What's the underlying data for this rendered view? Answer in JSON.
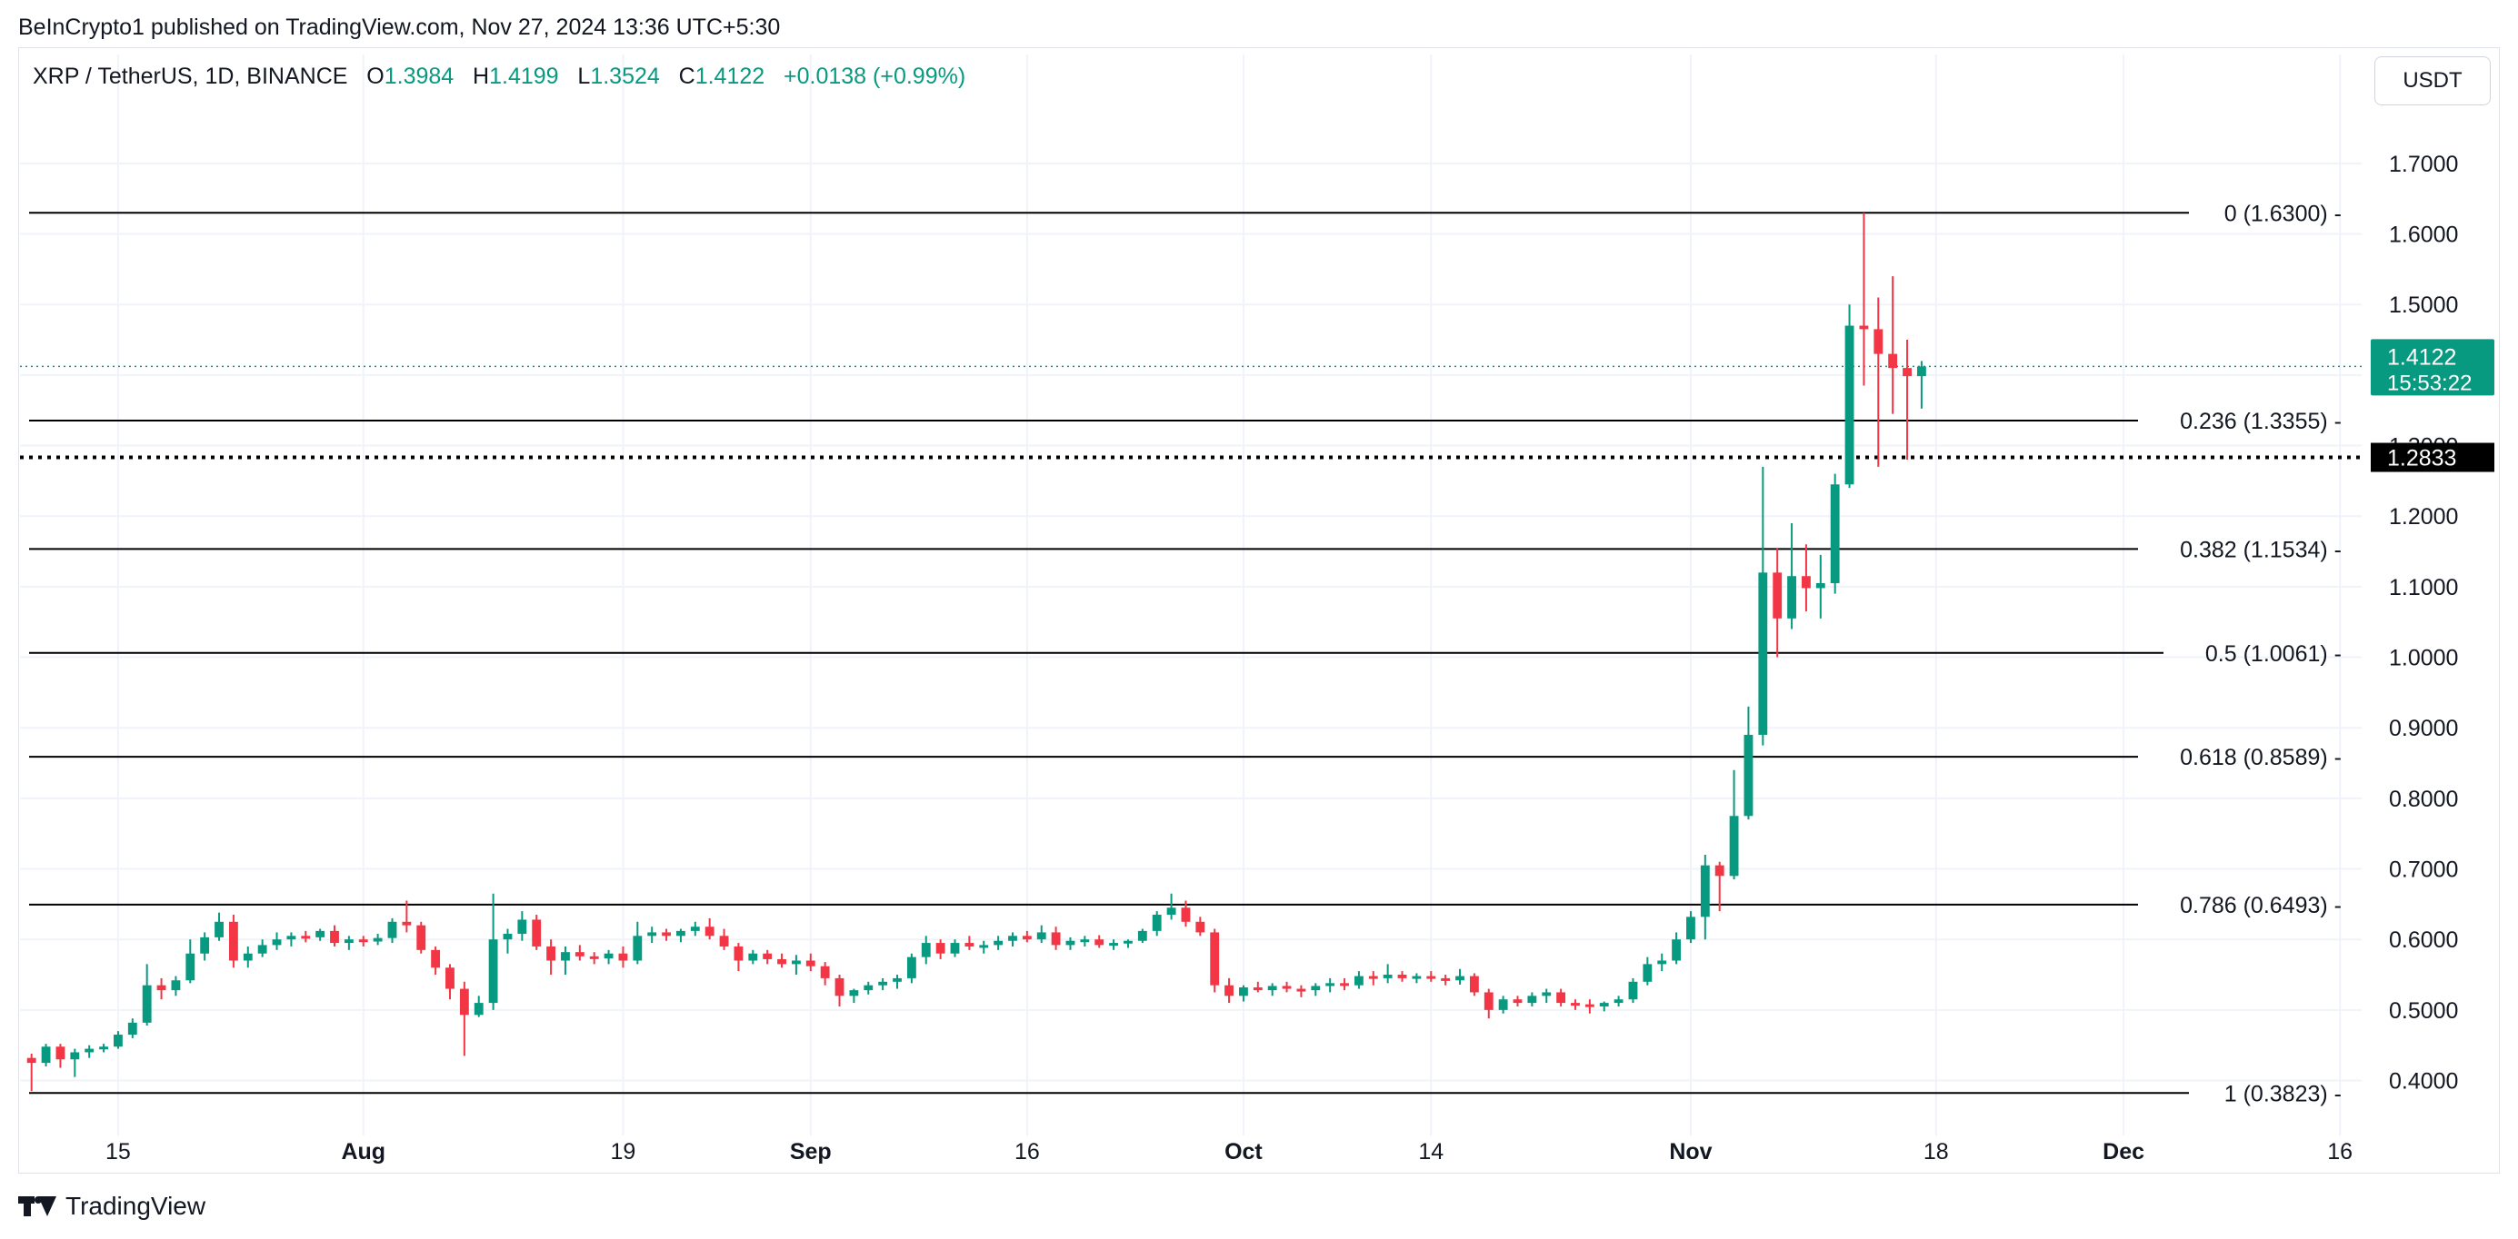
{
  "caption": "BeInCrypto1 published on TradingView.com, Nov 27, 2024 13:36 UTC+5:30",
  "legend": {
    "symbol": "XRP / TetherUS, 1D, BINANCE",
    "o_label": "O",
    "o_value": "1.3984",
    "h_label": "H",
    "h_value": "1.4199",
    "l_label": "L",
    "l_value": "1.3524",
    "c_label": "C",
    "c_value": "1.4122",
    "change": "+0.0138 (+0.99%)"
  },
  "currency_button": "USDT",
  "footer": {
    "brand": "TradingView"
  },
  "colors": {
    "up": "#089981",
    "down": "#f23645",
    "grid": "#f0f3fa",
    "text": "#131722"
  },
  "chart_data": {
    "type": "candlestick",
    "ylim": [
      0.335,
      1.79
    ],
    "yticks": [
      "0.4000",
      "0.5000",
      "0.6000",
      "0.7000",
      "0.8000",
      "0.9000",
      "1.0000",
      "1.1000",
      "1.2000",
      "1.3000",
      "1.4000",
      "1.5000",
      "1.6000",
      "1.7000"
    ],
    "x_start_day": "2024-07-09",
    "x_range_days": [
      -0.8,
      161.5
    ],
    "x_ticks": [
      {
        "label": "15",
        "day": 6
      },
      {
        "label": "Aug",
        "day": 23
      },
      {
        "label": "19",
        "day": 41
      },
      {
        "label": "Sep",
        "day": 54
      },
      {
        "label": "16",
        "day": 69
      },
      {
        "label": "Oct",
        "day": 84
      },
      {
        "label": "14",
        "day": 97
      },
      {
        "label": "Nov",
        "day": 115
      },
      {
        "label": "18",
        "day": 132
      },
      {
        "label": "Dec",
        "day": 145
      },
      {
        "label": "16",
        "day": 160
      }
    ],
    "fib_levels": [
      {
        "label": "0 (1.6300)",
        "value": 1.63
      },
      {
        "label": "0.236 (1.3355)",
        "value": 1.3355
      },
      {
        "label": "0.382 (1.1534)",
        "value": 1.1534
      },
      {
        "label": "0.5 (1.0061)",
        "value": 1.0061
      },
      {
        "label": "0.618 (0.8589)",
        "value": 0.8589
      },
      {
        "label": "0.786 (0.6493)",
        "value": 0.6493
      },
      {
        "label": "1 (0.3823)",
        "value": 0.3823
      }
    ],
    "last_price": {
      "value": 1.4122,
      "label": "1.4122",
      "countdown": "15:53:22"
    },
    "cursor_price": {
      "value": 1.2833,
      "label": "1.2833"
    },
    "ohlc": [
      [
        0.432,
        0.438,
        0.385,
        0.425
      ],
      [
        0.425,
        0.452,
        0.42,
        0.448
      ],
      [
        0.448,
        0.452,
        0.418,
        0.43
      ],
      [
        0.43,
        0.445,
        0.405,
        0.44
      ],
      [
        0.44,
        0.45,
        0.432,
        0.445
      ],
      [
        0.445,
        0.452,
        0.44,
        0.448
      ],
      [
        0.448,
        0.47,
        0.445,
        0.465
      ],
      [
        0.465,
        0.488,
        0.46,
        0.482
      ],
      [
        0.482,
        0.565,
        0.478,
        0.535
      ],
      [
        0.535,
        0.545,
        0.515,
        0.528
      ],
      [
        0.528,
        0.548,
        0.52,
        0.542
      ],
      [
        0.542,
        0.6,
        0.538,
        0.58
      ],
      [
        0.58,
        0.61,
        0.57,
        0.603
      ],
      [
        0.603,
        0.638,
        0.598,
        0.625
      ],
      [
        0.625,
        0.635,
        0.56,
        0.57
      ],
      [
        0.57,
        0.59,
        0.56,
        0.58
      ],
      [
        0.58,
        0.6,
        0.575,
        0.592
      ],
      [
        0.592,
        0.61,
        0.585,
        0.6
      ],
      [
        0.6,
        0.61,
        0.59,
        0.605
      ],
      [
        0.605,
        0.612,
        0.596,
        0.603
      ],
      [
        0.603,
        0.615,
        0.598,
        0.612
      ],
      [
        0.612,
        0.62,
        0.59,
        0.595
      ],
      [
        0.595,
        0.605,
        0.585,
        0.6
      ],
      [
        0.6,
        0.605,
        0.59,
        0.597
      ],
      [
        0.597,
        0.608,
        0.592,
        0.602
      ],
      [
        0.602,
        0.63,
        0.595,
        0.625
      ],
      [
        0.625,
        0.655,
        0.61,
        0.62
      ],
      [
        0.62,
        0.625,
        0.58,
        0.585
      ],
      [
        0.585,
        0.59,
        0.55,
        0.56
      ],
      [
        0.56,
        0.565,
        0.515,
        0.53
      ],
      [
        0.53,
        0.54,
        0.435,
        0.493
      ],
      [
        0.493,
        0.52,
        0.49,
        0.51
      ],
      [
        0.51,
        0.665,
        0.5,
        0.6
      ],
      [
        0.6,
        0.615,
        0.58,
        0.608
      ],
      [
        0.608,
        0.64,
        0.598,
        0.628
      ],
      [
        0.628,
        0.635,
        0.585,
        0.59
      ],
      [
        0.59,
        0.6,
        0.55,
        0.57
      ],
      [
        0.57,
        0.59,
        0.55,
        0.582
      ],
      [
        0.582,
        0.592,
        0.57,
        0.576
      ],
      [
        0.576,
        0.582,
        0.565,
        0.573
      ],
      [
        0.573,
        0.585,
        0.565,
        0.58
      ],
      [
        0.58,
        0.59,
        0.56,
        0.57
      ],
      [
        0.57,
        0.625,
        0.565,
        0.605
      ],
      [
        0.605,
        0.618,
        0.595,
        0.61
      ],
      [
        0.61,
        0.615,
        0.598,
        0.605
      ],
      [
        0.605,
        0.615,
        0.596,
        0.612
      ],
      [
        0.612,
        0.625,
        0.605,
        0.618
      ],
      [
        0.618,
        0.63,
        0.6,
        0.605
      ],
      [
        0.605,
        0.615,
        0.585,
        0.59
      ],
      [
        0.59,
        0.595,
        0.555,
        0.57
      ],
      [
        0.57,
        0.585,
        0.565,
        0.58
      ],
      [
        0.58,
        0.585,
        0.565,
        0.572
      ],
      [
        0.572,
        0.58,
        0.56,
        0.565
      ],
      [
        0.565,
        0.578,
        0.55,
        0.57
      ],
      [
        0.57,
        0.58,
        0.555,
        0.562
      ],
      [
        0.562,
        0.568,
        0.535,
        0.545
      ],
      [
        0.545,
        0.55,
        0.505,
        0.52
      ],
      [
        0.52,
        0.53,
        0.51,
        0.528
      ],
      [
        0.528,
        0.54,
        0.522,
        0.535
      ],
      [
        0.535,
        0.545,
        0.528,
        0.54
      ],
      [
        0.54,
        0.55,
        0.53,
        0.545
      ],
      [
        0.545,
        0.58,
        0.538,
        0.575
      ],
      [
        0.575,
        0.605,
        0.565,
        0.595
      ],
      [
        0.595,
        0.6,
        0.572,
        0.58
      ],
      [
        0.58,
        0.6,
        0.575,
        0.595
      ],
      [
        0.595,
        0.605,
        0.585,
        0.59
      ],
      [
        0.59,
        0.598,
        0.58,
        0.592
      ],
      [
        0.592,
        0.605,
        0.585,
        0.598
      ],
      [
        0.598,
        0.61,
        0.59,
        0.605
      ],
      [
        0.605,
        0.612,
        0.596,
        0.6
      ],
      [
        0.6,
        0.62,
        0.595,
        0.61
      ],
      [
        0.61,
        0.618,
        0.585,
        0.592
      ],
      [
        0.592,
        0.603,
        0.585,
        0.598
      ],
      [
        0.598,
        0.605,
        0.59,
        0.6
      ],
      [
        0.6,
        0.606,
        0.588,
        0.592
      ],
      [
        0.592,
        0.6,
        0.585,
        0.595
      ],
      [
        0.595,
        0.6,
        0.588,
        0.598
      ],
      [
        0.598,
        0.615,
        0.595,
        0.612
      ],
      [
        0.612,
        0.64,
        0.605,
        0.635
      ],
      [
        0.635,
        0.665,
        0.628,
        0.645
      ],
      [
        0.645,
        0.655,
        0.618,
        0.625
      ],
      [
        0.625,
        0.632,
        0.605,
        0.61
      ],
      [
        0.61,
        0.615,
        0.525,
        0.535
      ],
      [
        0.535,
        0.545,
        0.51,
        0.52
      ],
      [
        0.52,
        0.535,
        0.512,
        0.532
      ],
      [
        0.532,
        0.54,
        0.525,
        0.528
      ],
      [
        0.528,
        0.538,
        0.52,
        0.534
      ],
      [
        0.534,
        0.54,
        0.525,
        0.53
      ],
      [
        0.53,
        0.535,
        0.518,
        0.528
      ],
      [
        0.528,
        0.538,
        0.52,
        0.534
      ],
      [
        0.534,
        0.545,
        0.525,
        0.538
      ],
      [
        0.538,
        0.545,
        0.528,
        0.535
      ],
      [
        0.535,
        0.555,
        0.53,
        0.548
      ],
      [
        0.548,
        0.555,
        0.535,
        0.545
      ],
      [
        0.545,
        0.565,
        0.538,
        0.55
      ],
      [
        0.55,
        0.555,
        0.54,
        0.545
      ],
      [
        0.545,
        0.552,
        0.538,
        0.548
      ],
      [
        0.548,
        0.555,
        0.54,
        0.545
      ],
      [
        0.545,
        0.55,
        0.535,
        0.542
      ],
      [
        0.542,
        0.558,
        0.536,
        0.548
      ],
      [
        0.548,
        0.552,
        0.52,
        0.525
      ],
      [
        0.525,
        0.53,
        0.488,
        0.5
      ],
      [
        0.5,
        0.52,
        0.495,
        0.515
      ],
      [
        0.515,
        0.52,
        0.505,
        0.51
      ],
      [
        0.51,
        0.525,
        0.505,
        0.52
      ],
      [
        0.52,
        0.53,
        0.51,
        0.525
      ],
      [
        0.525,
        0.53,
        0.505,
        0.51
      ],
      [
        0.51,
        0.515,
        0.5,
        0.508
      ],
      [
        0.508,
        0.515,
        0.495,
        0.505
      ],
      [
        0.505,
        0.512,
        0.498,
        0.51
      ],
      [
        0.51,
        0.52,
        0.505,
        0.515
      ],
      [
        0.515,
        0.545,
        0.51,
        0.54
      ],
      [
        0.54,
        0.575,
        0.535,
        0.565
      ],
      [
        0.565,
        0.58,
        0.555,
        0.57
      ],
      [
        0.57,
        0.61,
        0.565,
        0.6
      ],
      [
        0.6,
        0.64,
        0.595,
        0.632
      ],
      [
        0.632,
        0.72,
        0.6,
        0.705
      ],
      [
        0.705,
        0.71,
        0.64,
        0.69
      ],
      [
        0.69,
        0.84,
        0.685,
        0.775
      ],
      [
        0.775,
        0.93,
        0.77,
        0.89
      ],
      [
        0.89,
        1.27,
        0.875,
        1.12
      ],
      [
        1.12,
        1.155,
        1.0,
        1.055
      ],
      [
        1.055,
        1.19,
        1.04,
        1.115
      ],
      [
        1.115,
        1.16,
        1.065,
        1.098
      ],
      [
        1.098,
        1.145,
        1.055,
        1.105
      ],
      [
        1.105,
        1.26,
        1.09,
        1.245
      ],
      [
        1.245,
        1.5,
        1.24,
        1.47
      ],
      [
        1.47,
        1.63,
        1.385,
        1.465
      ],
      [
        1.465,
        1.51,
        1.27,
        1.43
      ],
      [
        1.43,
        1.54,
        1.345,
        1.41
      ],
      [
        1.41,
        1.45,
        1.28,
        1.3984
      ],
      [
        1.3984,
        1.4199,
        1.3524,
        1.4122
      ]
    ],
    "first_candle_day": 0,
    "candle_day_gaps": "daily, day index = array index"
  }
}
